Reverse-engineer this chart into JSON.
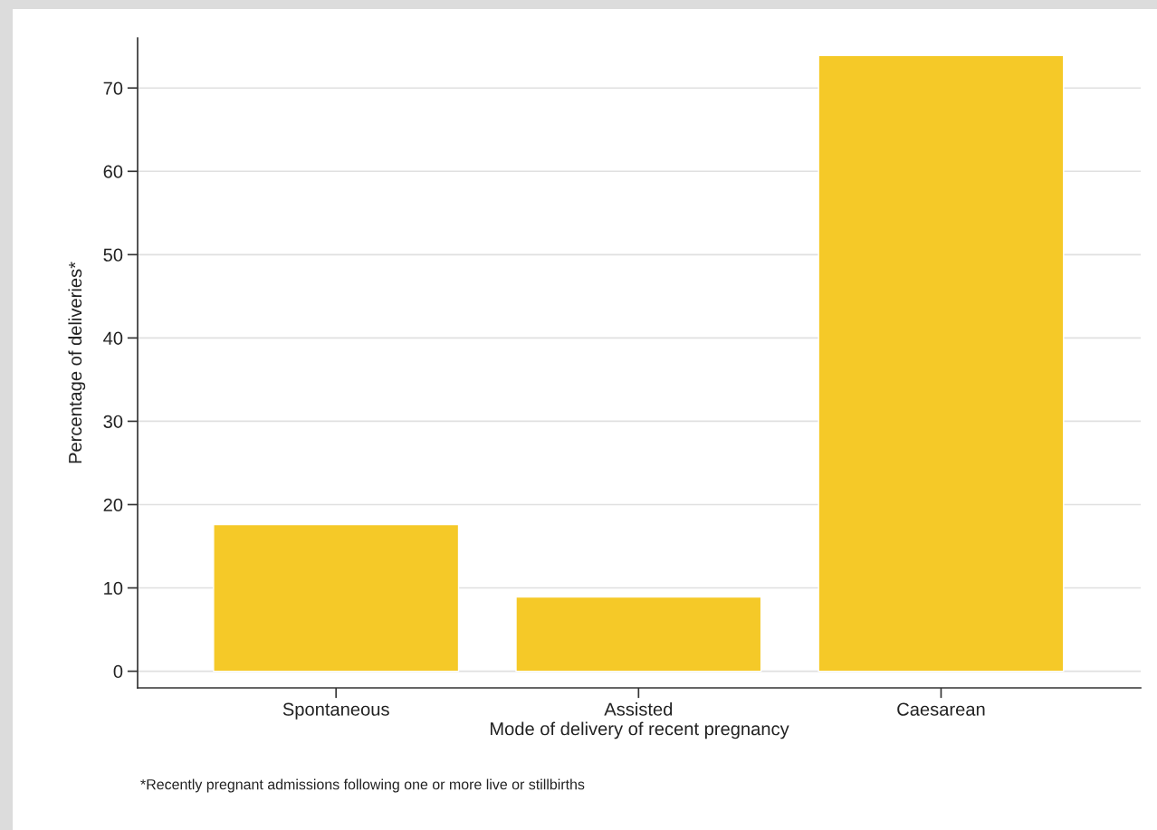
{
  "chart_data": {
    "type": "bar",
    "categories": [
      "Spontaneous",
      "Assisted",
      "Caesarean"
    ],
    "values": [
      17.6,
      8.9,
      73.9
    ],
    "color": "#f5c928",
    "xlabel": "Mode of delivery of recent pregnancy",
    "ylabel": "Percentage of deliveries*",
    "ylim": [
      -2,
      76
    ],
    "yticks": [
      0,
      10,
      20,
      30,
      40,
      50,
      60,
      70
    ],
    "grid": "y",
    "annotations": [
      "*Recently pregnant admissions following one or more live or stillbirths"
    ]
  }
}
